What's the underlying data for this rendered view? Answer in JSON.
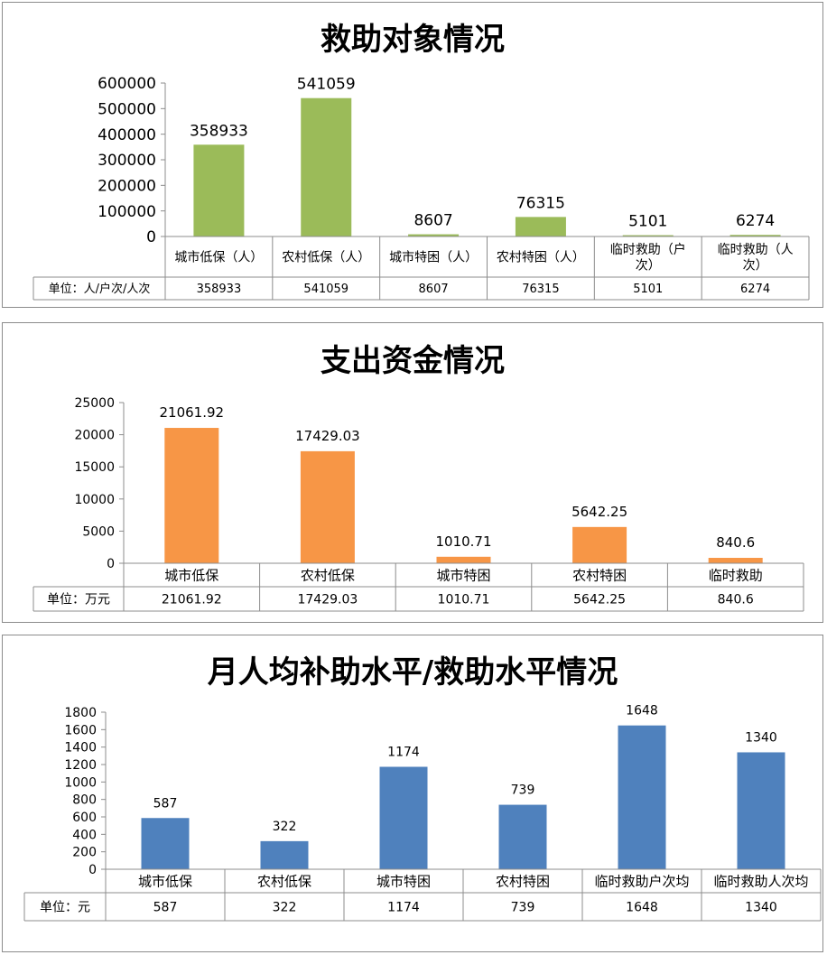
{
  "chart_data": [
    {
      "type": "bar",
      "title": "救助对象情况",
      "categories": [
        "城市低保（人）",
        "农村低保（人）",
        "城市特困（人）",
        "农村特困（人）",
        "临时救助（户次）",
        "临时救助（人次）"
      ],
      "category_lines": [
        [
          "城市低保（人）"
        ],
        [
          "农村低保（人）"
        ],
        [
          "城市特困（人）"
        ],
        [
          "农村特困（人）"
        ],
        [
          "临时救助（户",
          "次）"
        ],
        [
          "临时救助（人",
          "次）"
        ]
      ],
      "values": [
        358933,
        541059,
        8607,
        76315,
        5101,
        6274
      ],
      "value_labels": [
        "358933",
        "541059",
        "8607",
        "76315",
        "5101",
        "6274"
      ],
      "table_row_label": "单位：人/户次/人次",
      "ylim": [
        0,
        600000
      ],
      "yticks": [
        "0",
        "100000",
        "200000",
        "300000",
        "400000",
        "500000",
        "600000"
      ],
      "color": "#9bbb59",
      "grid": false,
      "legend": "none"
    },
    {
      "type": "bar",
      "title": "支出资金情况",
      "categories": [
        "城市低保",
        "农村低保",
        "城市特困",
        "农村特困",
        "临时救助"
      ],
      "values": [
        21061.92,
        17429.03,
        1010.71,
        5642.25,
        840.6
      ],
      "value_labels": [
        "21061.92",
        "17429.03",
        "1010.71",
        "5642.25",
        "840.6"
      ],
      "table_row_label": "单位：万元",
      "ylim": [
        0,
        25000
      ],
      "yticks": [
        "0",
        "5000",
        "10000",
        "15000",
        "20000",
        "25000"
      ],
      "color": "#f79646",
      "grid": false,
      "legend": "none"
    },
    {
      "type": "bar",
      "title": "月人均补助水平/救助水平情况",
      "categories": [
        "城市低保",
        "农村低保",
        "城市特困",
        "农村特困",
        "临时救助户次均",
        "临时救助人次均"
      ],
      "values": [
        587,
        322,
        1174,
        739,
        1648,
        1340
      ],
      "value_labels": [
        "587",
        "322",
        "1174",
        "739",
        "1648",
        "1340"
      ],
      "table_row_label": "单位：元",
      "ylim": [
        0,
        1800
      ],
      "yticks": [
        "0",
        "200",
        "400",
        "600",
        "800",
        "1000",
        "1200",
        "1400",
        "1600",
        "1800"
      ],
      "color": "#4f81bd",
      "grid": false,
      "legend": "none"
    }
  ]
}
